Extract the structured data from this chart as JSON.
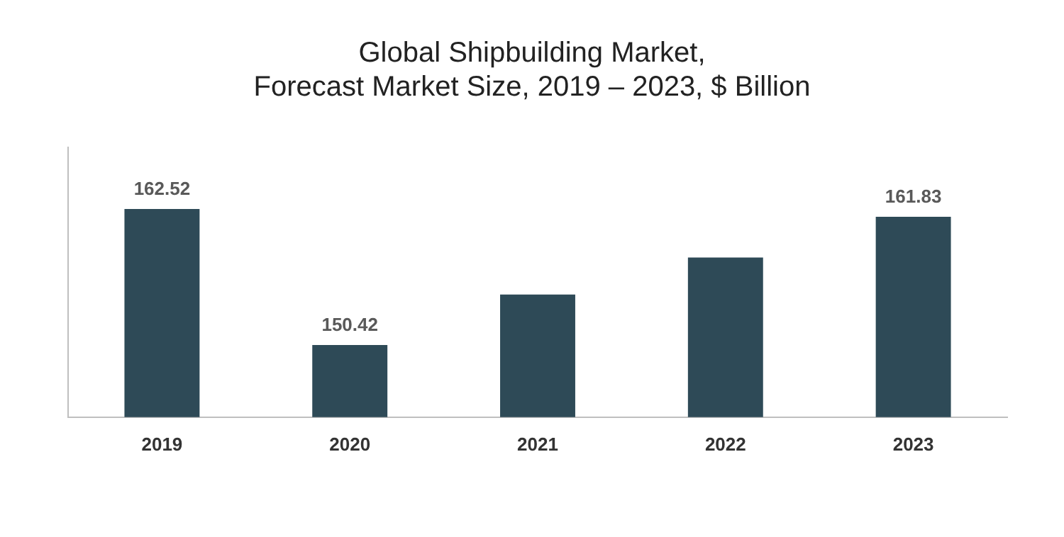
{
  "chart_data": {
    "type": "bar",
    "title": "Global Shipbuilding Market,\nForecast Market Size, 2019 – 2023, $ Billion",
    "categories": [
      "2019",
      "2020",
      "2021",
      "2022",
      "2023"
    ],
    "values": [
      162.52,
      150.42,
      154.9,
      158.2,
      161.83
    ],
    "value_labels": [
      "162.52",
      "150.42",
      null,
      null,
      "161.83"
    ],
    "color": "#2e4a57",
    "ylim": [
      144,
      168
    ],
    "tick_labels": "x",
    "grid": false,
    "legend": false
  }
}
